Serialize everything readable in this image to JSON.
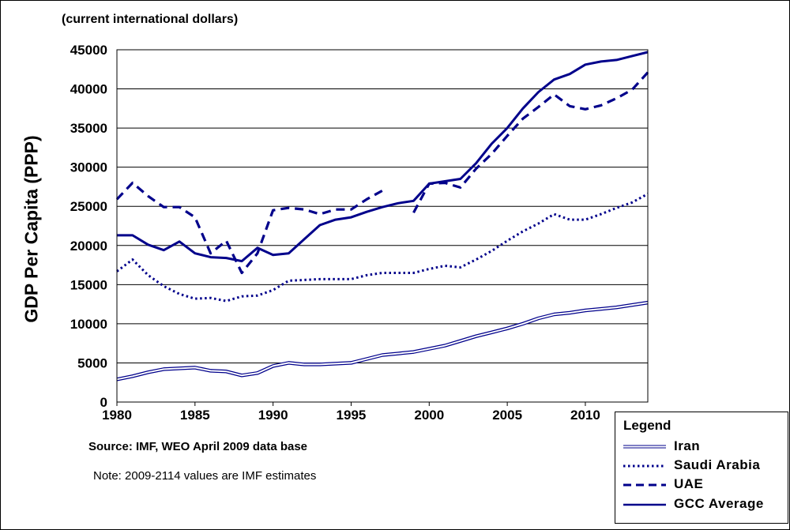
{
  "header": {
    "unit_note": "(current international dollars)"
  },
  "footer": {
    "source": "Source: IMF, WEO April 2009 data base",
    "note": "Note: 2009-2114 values are IMF estimates"
  },
  "legend": {
    "title": "Legend",
    "items": [
      {
        "label": "Iran",
        "style": "double-thin"
      },
      {
        "label": "Saudi Arabia",
        "style": "dotted"
      },
      {
        "label": "UAE",
        "style": "dashed"
      },
      {
        "label": "GCC Average",
        "style": "solid"
      }
    ]
  },
  "chart_data": {
    "type": "line",
    "title": "",
    "xlabel": "",
    "ylabel": "GDP Per Capita (PPP)",
    "xlim": [
      1980,
      2014
    ],
    "ylim": [
      0,
      45000
    ],
    "grid": true,
    "x_ticks": [
      1980,
      1985,
      1990,
      1995,
      2000,
      2005,
      2010
    ],
    "y_ticks": [
      0,
      5000,
      10000,
      15000,
      20000,
      25000,
      30000,
      35000,
      40000,
      45000
    ],
    "line_color": "#00008b",
    "x": [
      1980,
      1981,
      1982,
      1983,
      1984,
      1985,
      1986,
      1987,
      1988,
      1989,
      1990,
      1991,
      1992,
      1993,
      1994,
      1995,
      1996,
      1997,
      1998,
      1999,
      2000,
      2001,
      2002,
      2003,
      2004,
      2005,
      2006,
      2007,
      2008,
      2009,
      2010,
      2011,
      2012,
      2013,
      2014
    ],
    "series": [
      {
        "name": "Iran",
        "style": "double-thin",
        "values": [
          2900,
          3300,
          3800,
          4200,
          4300,
          4400,
          4000,
          3900,
          3400,
          3700,
          4600,
          5000,
          4800,
          4800,
          4900,
          5000,
          5500,
          6000,
          6200,
          6400,
          6800,
          7200,
          7800,
          8400,
          8900,
          9400,
          10000,
          10700,
          11200,
          11400,
          11700,
          11900,
          12100,
          12400,
          12700
        ]
      },
      {
        "name": "Saudi Arabia",
        "style": "dotted",
        "values": [
          16700,
          18200,
          16200,
          14800,
          13800,
          13200,
          13300,
          12900,
          13500,
          13600,
          14300,
          15500,
          15600,
          15700,
          15700,
          15700,
          16200,
          16500,
          16500,
          16500,
          17000,
          17400,
          17200,
          18200,
          19300,
          20600,
          21800,
          22800,
          24000,
          23300,
          23300,
          24000,
          24800,
          25500,
          26600
        ]
      },
      {
        "name": "UAE",
        "style": "dashed",
        "values": [
          25900,
          28000,
          26300,
          24900,
          24900,
          23600,
          19000,
          20600,
          16500,
          19000,
          24500,
          24800,
          24600,
          24000,
          24600,
          24600,
          25900,
          27000,
          null,
          24200,
          27900,
          28000,
          27400,
          29800,
          31700,
          34000,
          36200,
          37700,
          39300,
          37800,
          37400,
          37900,
          38800,
          39900,
          42100
        ]
      },
      {
        "name": "GCC Average",
        "style": "solid",
        "values": [
          21300,
          21300,
          20100,
          19400,
          20500,
          19000,
          18500,
          18400,
          18000,
          19700,
          18800,
          19000,
          20800,
          22600,
          23300,
          23600,
          24300,
          24900,
          25400,
          25700,
          27900,
          28200,
          28500,
          30500,
          33000,
          35000,
          37500,
          39600,
          41200,
          41900,
          43100,
          43500,
          43700,
          44200,
          44700
        ]
      }
    ]
  }
}
